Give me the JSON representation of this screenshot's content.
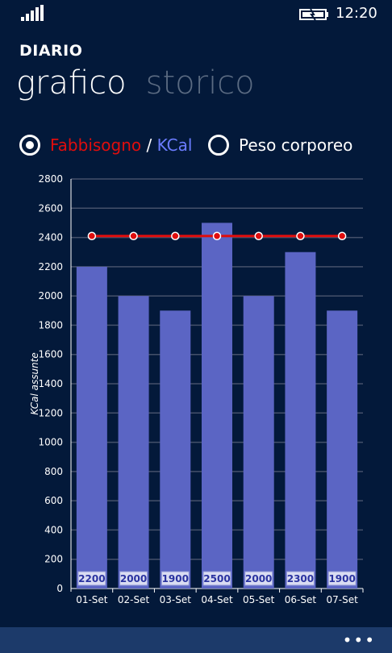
{
  "status": {
    "time": "12:20",
    "icons": [
      "signal-icon",
      "battery-charging-icon"
    ]
  },
  "app": {
    "title": "DIARIO"
  },
  "pivot": {
    "active": "grafico",
    "inactive": "storico"
  },
  "options": {
    "option1": {
      "part1": "Fabbisogno",
      "sep": " / ",
      "part2": "KCal",
      "checked": true
    },
    "option2": {
      "label": "Peso corporeo",
      "checked": false
    }
  },
  "colors": {
    "background": "#03193a",
    "bar": "#5b65c4",
    "line": "#e00d0d",
    "label_red": "#e00d0d",
    "label_blue": "#6b7cff",
    "appbar": "#1c3a6a"
  },
  "chart_data": {
    "type": "bar",
    "categories": [
      "01-Set",
      "02-Set",
      "03-Set",
      "04-Set",
      "05-Set",
      "06-Set",
      "07-Set"
    ],
    "series": [
      {
        "values": [
          2200,
          2000,
          1900,
          2500,
          2000,
          2300,
          1900
        ]
      },
      {
        "type": "line",
        "values": [
          2410,
          2410,
          2410,
          2410,
          2410,
          2410,
          2410
        ]
      }
    ],
    "data_labels": [
      "2200",
      "2000",
      "1900",
      "2500",
      "2000",
      "2300",
      "1900"
    ],
    "ylabel": "KCal assunte",
    "xlabel": "",
    "ylim": [
      0,
      2800
    ],
    "yticks": [
      0,
      200,
      400,
      600,
      800,
      1000,
      1200,
      1400,
      1600,
      1800,
      2000,
      2200,
      2400,
      2600,
      2800
    ],
    "grid": true
  },
  "appbar": {
    "more": "•••"
  }
}
